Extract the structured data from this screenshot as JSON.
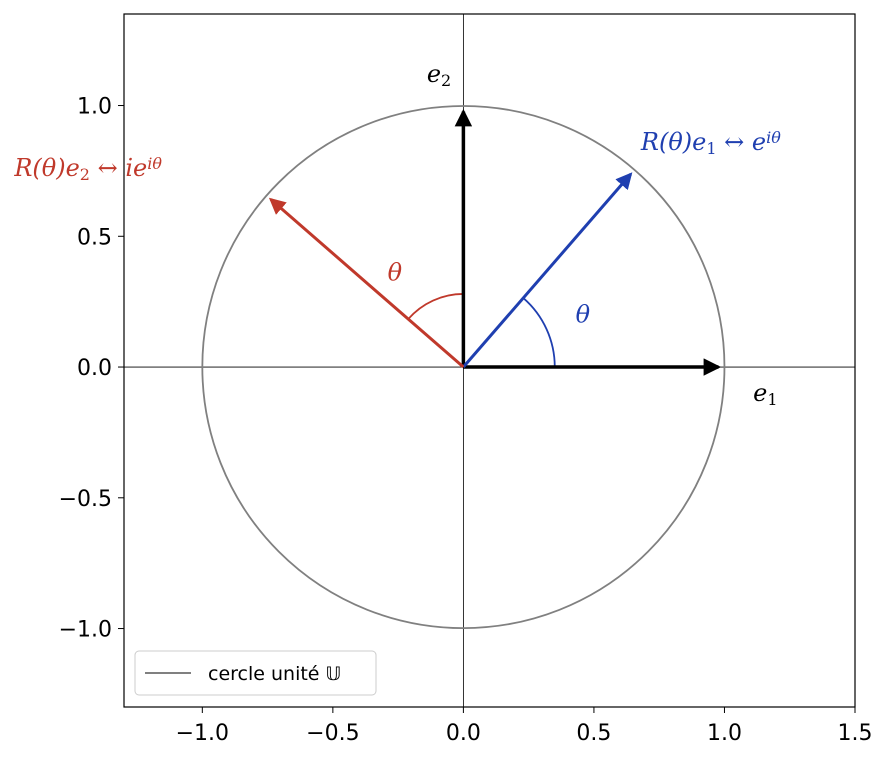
{
  "chart_data": {
    "type": "line",
    "xlim": [
      -1.3,
      1.5
    ],
    "ylim": [
      -1.3,
      1.35
    ],
    "xticks": [
      -1.0,
      -0.5,
      0.0,
      0.5,
      1.0,
      1.5
    ],
    "yticks": [
      -1.0,
      -0.5,
      0.0,
      0.5,
      1.0
    ],
    "xtick_labels": [
      "−1.0",
      "−0.5",
      "0.0",
      "0.5",
      "1.0",
      "1.5"
    ],
    "ytick_labels": [
      "−1.0",
      "−0.5",
      "0.0",
      "0.5",
      "1.0"
    ],
    "grid": false,
    "legend_position": "lower-left",
    "unit_circle": {
      "center": [
        0,
        0
      ],
      "radius": 1,
      "color": "#808080"
    },
    "theta_deg": 49,
    "vectors": [
      {
        "id": "e1",
        "from": [
          0,
          0
        ],
        "to": [
          1.0,
          0.0
        ],
        "color": "#000000",
        "label": {
          "base": "e",
          "sub": "1",
          "sup": "",
          "suffix": "",
          "at": [
            1.11,
            -0.13
          ]
        }
      },
      {
        "id": "e2",
        "from": [
          0,
          0
        ],
        "to": [
          0.0,
          1.0
        ],
        "color": "#000000",
        "label": {
          "base": "e",
          "sub": "2",
          "sup": "",
          "suffix": "",
          "at": [
            -0.14,
            1.09
          ]
        }
      },
      {
        "id": "Re1",
        "from": [
          0,
          0
        ],
        "to": [
          0.656,
          0.755
        ],
        "color": "#1f3fb0",
        "label": {
          "base": "R(θ)e",
          "sub": "1",
          "sup": "iθ",
          "suffix": " ↔ e",
          "at": [
            0.68,
            0.83
          ]
        }
      },
      {
        "id": "Re2",
        "from": [
          0,
          0
        ],
        "to": [
          -0.755,
          0.656
        ],
        "color": "#c0392b",
        "label": {
          "base": "R(θ)e",
          "sub": "2",
          "sup": "iθ",
          "suffix": " ↔ ie",
          "at": [
            -1.72,
            0.73
          ]
        }
      }
    ],
    "angle_arcs": [
      {
        "id": "arc-blue",
        "radius": 0.35,
        "start_deg": 0,
        "end_deg": 49,
        "color": "#1f3fb0",
        "label": "θ",
        "label_at": [
          0.43,
          0.17
        ]
      },
      {
        "id": "arc-red",
        "radius": 0.28,
        "start_deg": 90,
        "end_deg": 139,
        "color": "#c0392b",
        "label": "θ",
        "label_at": [
          -0.29,
          0.33
        ]
      }
    ],
    "legend": {
      "entries": [
        {
          "label": "cercle unité 𝕌",
          "color": "#808080"
        }
      ]
    }
  }
}
